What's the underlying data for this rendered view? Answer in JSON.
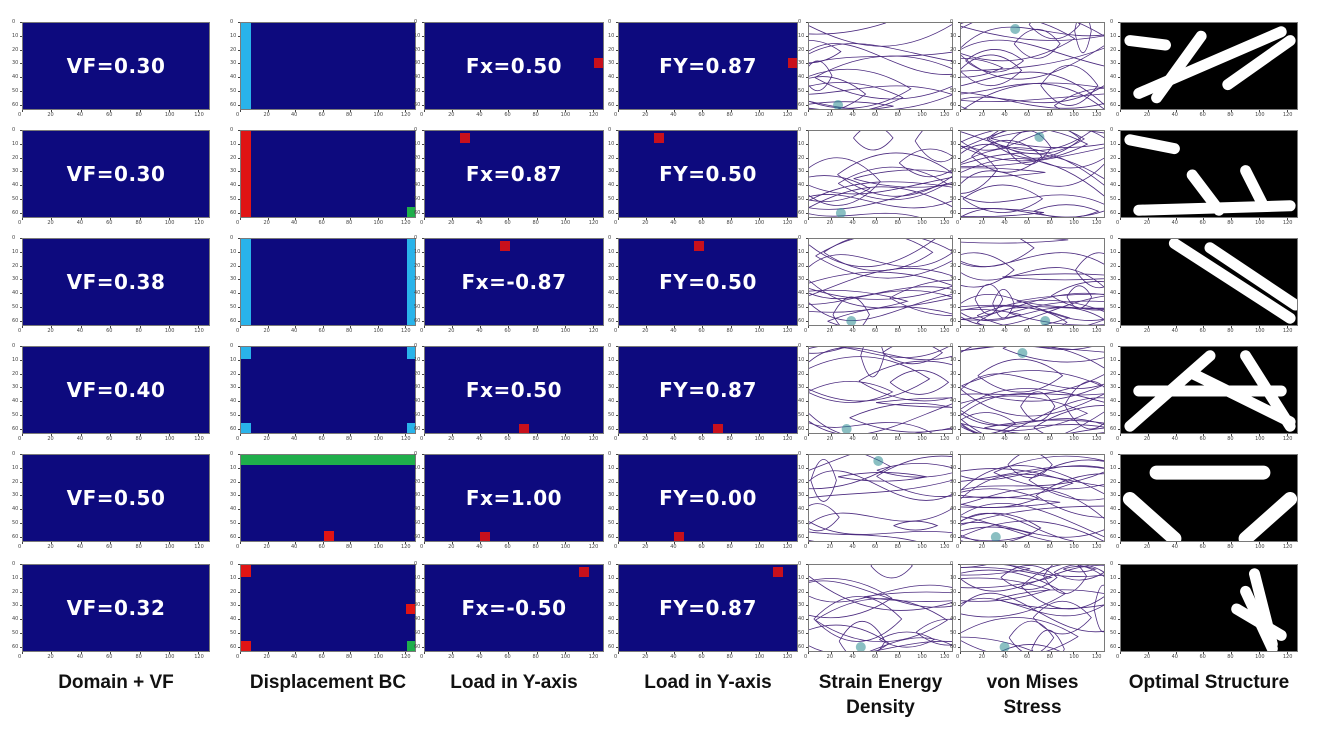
{
  "columns": [
    {
      "key": "domain",
      "label": "Domain + VF"
    },
    {
      "key": "bc",
      "label": "Displacement BC"
    },
    {
      "key": "loadx",
      "label": "Load in Y-axis"
    },
    {
      "key": "loady",
      "label": "Load in Y-axis"
    },
    {
      "key": "sed",
      "label": "Strain Energy Density"
    },
    {
      "key": "vm",
      "label": "von Mises Stress"
    },
    {
      "key": "opt",
      "label": "Optimal Structure"
    }
  ],
  "rows": [
    {
      "vf": "VF=0.30",
      "fx": "Fx=0.50",
      "fy": "FY=0.87",
      "load_node": [
        124,
        28
      ],
      "bc": [
        {
          "type": "x",
          "pos": "left"
        }
      ]
    },
    {
      "vf": "VF=0.30",
      "fx": "Fx=0.87",
      "fy": "FY=0.50",
      "load_node": [
        28,
        4
      ],
      "bc": [
        {
          "type": "xy",
          "pos": "left"
        },
        {
          "type": "y",
          "pos": "br"
        }
      ]
    },
    {
      "vf": "VF=0.38",
      "fx": "Fx=-0.87",
      "fy": "FY=0.50",
      "load_node": [
        56,
        4
      ],
      "bc": [
        {
          "type": "x",
          "pos": "left"
        },
        {
          "type": "x",
          "pos": "right"
        }
      ]
    },
    {
      "vf": "VF=0.40",
      "fx": "Fx=0.50",
      "fy": "FY=0.87",
      "load_node": [
        70,
        60
      ],
      "bc": [
        {
          "type": "x",
          "pos": "tl"
        },
        {
          "type": "x",
          "pos": "tr"
        },
        {
          "type": "x",
          "pos": "bl"
        },
        {
          "type": "x",
          "pos": "br"
        }
      ]
    },
    {
      "vf": "VF=0.50",
      "fx": "Fx=1.00",
      "fy": "FY=0.00",
      "load_node": [
        42,
        60
      ],
      "bc": [
        {
          "type": "y",
          "pos": "top"
        },
        {
          "type": "xy",
          "pos": "bmid"
        }
      ]
    },
    {
      "vf": "VF=0.32",
      "fx": "Fx=-0.50",
      "fy": "FY=0.87",
      "load_node": [
        112,
        4
      ],
      "bc": [
        {
          "type": "xy",
          "pos": "tl"
        },
        {
          "type": "xy",
          "pos": "bl"
        },
        {
          "type": "xy",
          "pos": "rmid"
        },
        {
          "type": "y",
          "pos": "br"
        }
      ]
    }
  ],
  "axes": {
    "x_ticks": [
      "0",
      "20",
      "40",
      "60",
      "80",
      "100",
      "120"
    ],
    "y_ticks": [
      "0",
      "10",
      "20",
      "30",
      "40",
      "50",
      "60"
    ],
    "x_max": 128,
    "y_max": 64
  },
  "colors": {
    "domain": "#0d0a7e",
    "bc_x": "#29b3ea",
    "bc_xy": "#e01414",
    "bc_y": "#1fae4b",
    "load": "#c8101c",
    "contour": "#4b2a7f",
    "solid": "#ffffff",
    "void": "#000000"
  }
}
